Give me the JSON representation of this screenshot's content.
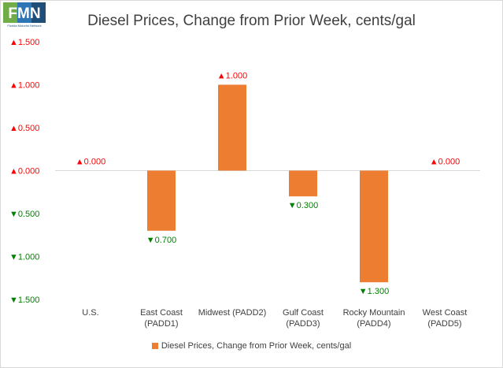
{
  "logo": {
    "text": "FMN",
    "subtext": "Florida Motorist Network"
  },
  "chart_data": {
    "type": "bar",
    "title": "Diesel Prices, Change from Prior Week, cents/gal",
    "categories": [
      "U.S.",
      "East Coast (PADD1)",
      "Midwest (PADD2)",
      "Gulf Coast (PADD3)",
      "Rocky Mountain (PADD4)",
      "West Coast (PADD5)"
    ],
    "category_lines": [
      [
        "U.S."
      ],
      [
        "East Coast",
        "(PADD1)"
      ],
      [
        "Midwest (PADD2)"
      ],
      [
        "Gulf Coast",
        "(PADD3)"
      ],
      [
        "Rocky Mountain",
        "(PADD4)"
      ],
      [
        "West Coast",
        "(PADD5)"
      ]
    ],
    "series": [
      {
        "name": "Diesel Prices, Change from Prior Week, cents/gal",
        "values": [
          0.0,
          -0.7,
          1.0,
          -0.3,
          -1.3,
          0.0
        ]
      }
    ],
    "data_labels": [
      "▲0.000",
      "▼0.700",
      "▲1.000",
      "▼0.300",
      "▼1.300",
      "▲0.000"
    ],
    "yticks": [
      1.5,
      1.0,
      0.5,
      0.0,
      -0.5,
      -1.0,
      -1.5
    ],
    "ytick_labels": [
      "▲1.500",
      "▲1.000",
      "▲0.500",
      "▲0.000",
      "▼0.500",
      "▼1.000",
      "▼1.500"
    ],
    "ylim": [
      -1.5,
      1.5
    ],
    "legend_position": "bottom",
    "colors": {
      "bar": "#ed7d31",
      "up": "#ff0000",
      "down": "#008000",
      "axis_text": "#404040"
    }
  }
}
